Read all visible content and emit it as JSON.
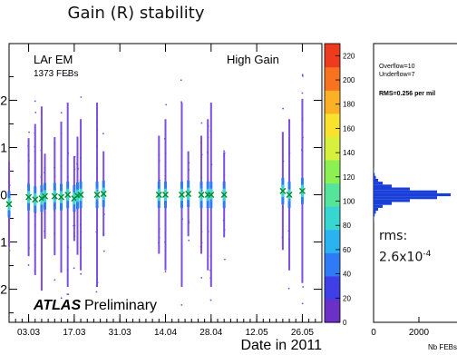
{
  "page_title": "Gain (R) stability",
  "annotation": {
    "rms_label": "rms:",
    "rms_value": "2.6x10",
    "rms_exp": "-4"
  },
  "chart_data": [
    {
      "type": "scatter",
      "title": "Gain (R) stability",
      "labels": {
        "detector": "LAr EM",
        "feb_count": "1373 FEBs",
        "gain": "High Gain",
        "atlas": "ATLAS",
        "preliminary": "Preliminary"
      },
      "xlabel": "Date in 2011",
      "ylabel": "",
      "x_ticks": [
        "03.03",
        "17.03",
        "31.03",
        "14.04",
        "28.04",
        "12.05",
        "26.05"
      ],
      "x_range": [
        "2011-02-25",
        "2011-06-01"
      ],
      "ylim": [
        -2.7,
        3.2
      ],
      "y_ticks": [
        -2,
        -1,
        0,
        1,
        2
      ],
      "colorbar": {
        "ticks": [
          0,
          20,
          40,
          60,
          80,
          100,
          120,
          140,
          160,
          180,
          200,
          220
        ],
        "range": [
          0,
          230
        ]
      },
      "means_marker": "x",
      "run_dates": [
        "2011-02-25",
        "2011-03-03",
        "2011-03-05",
        "2011-03-07",
        "2011-03-08",
        "2011-03-11",
        "2011-03-13",
        "2011-03-15",
        "2011-03-17",
        "2011-03-18",
        "2011-03-19",
        "2011-03-24",
        "2011-03-26",
        "2011-04-12",
        "2011-04-14",
        "2011-04-19",
        "2011-04-21",
        "2011-04-25",
        "2011-04-27",
        "2011-04-28",
        "2011-05-02",
        "2011-05-20",
        "2011-05-22",
        "2011-05-26"
      ],
      "run_means": [
        -0.2,
        -0.05,
        -0.1,
        -0.08,
        -0.03,
        -0.03,
        -0.05,
        0.0,
        -0.08,
        -0.02,
        0.0,
        0.0,
        0.02,
        0.0,
        0.0,
        0.0,
        0.02,
        0.0,
        0.0,
        0.0,
        0.0,
        0.08,
        0.0,
        0.08
      ]
    },
    {
      "type": "bar",
      "orientation": "horizontal",
      "stats": {
        "overflow": "Overflow=10",
        "underflow": "Underflow=7",
        "rms": "RMS=0.256 per mil"
      },
      "xlabel": "Nb FEBs",
      "x_ticks": [
        0,
        2000
      ],
      "y_bins": [
        -0.9,
        -0.8,
        -0.7,
        -0.6,
        -0.5,
        -0.4,
        -0.3,
        -0.2,
        -0.1,
        0.0,
        0.1,
        0.2,
        0.3,
        0.4,
        0.5,
        0.6,
        0.7,
        0.8,
        0.9
      ],
      "values": [
        10,
        20,
        50,
        100,
        200,
        400,
        800,
        1600,
        2800,
        3400,
        2800,
        1600,
        800,
        400,
        200,
        100,
        50,
        20,
        10
      ]
    }
  ]
}
